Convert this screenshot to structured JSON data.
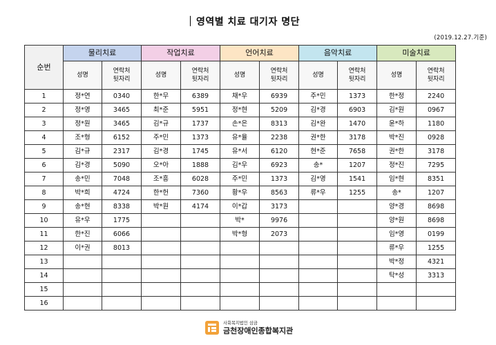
{
  "title": "영역별 치료 대기자 명단",
  "date_note": "(2019.12.27.기준)",
  "number_header": "순번",
  "colors": {
    "physical": "#c5d4ee",
    "occupational": "#f3cfe6",
    "speech": "#fde5c4",
    "music": "#c3e5ef",
    "art": "#d8e9be",
    "logo": "#f2a23a"
  },
  "groups": [
    {
      "key": "physical",
      "label": "물리치료",
      "name_header": "성명",
      "contact_header": [
        "연락처",
        "뒷자리"
      ]
    },
    {
      "key": "occupational",
      "label": "작업치료",
      "name_header": "성명",
      "contact_header": [
        "연락처",
        "뒷자리"
      ]
    },
    {
      "key": "speech",
      "label": "언어치료",
      "name_header": "성명",
      "contact_header": [
        "연락처",
        "뒷자리"
      ]
    },
    {
      "key": "music",
      "label": "음악치료",
      "name_header": "성명",
      "contact_header": [
        "연락처",
        "뒷자리"
      ]
    },
    {
      "key": "art",
      "label": "미술치료",
      "name_header": "성명",
      "contact_header": [
        "연락처",
        "뒷자리"
      ]
    }
  ],
  "rows": [
    {
      "no": "1",
      "cells": [
        [
          "정*연",
          "0340"
        ],
        [
          "한*무",
          "6389"
        ],
        [
          "채*우",
          "6939"
        ],
        [
          "주*민",
          "1373"
        ],
        [
          "한*정",
          "2240"
        ]
      ]
    },
    {
      "no": "2",
      "cells": [
        [
          "정*영",
          "3465"
        ],
        [
          "최*준",
          "5951"
        ],
        [
          "정*현",
          "5209"
        ],
        [
          "김*경",
          "6903"
        ],
        [
          "김*원",
          "0967"
        ]
      ]
    },
    {
      "no": "3",
      "cells": [
        [
          "정*원",
          "3465"
        ],
        [
          "김*규",
          "1737"
        ],
        [
          "손*은",
          "8313"
        ],
        [
          "김*완",
          "1470"
        ],
        [
          "윤*하",
          "1180"
        ]
      ]
    },
    {
      "no": "4",
      "cells": [
        [
          "조*형",
          "6152"
        ],
        [
          "주*민",
          "1373"
        ],
        [
          "유*율",
          "2238"
        ],
        [
          "권*한",
          "3178"
        ],
        [
          "박*진",
          "0928"
        ]
      ]
    },
    {
      "no": "5",
      "cells": [
        [
          "김*규",
          "2317"
        ],
        [
          "김*경",
          "1745"
        ],
        [
          "유*서",
          "6120"
        ],
        [
          "현*준",
          "7658"
        ],
        [
          "권*한",
          "3178"
        ]
      ]
    },
    {
      "no": "6",
      "cells": [
        [
          "김*경",
          "5090"
        ],
        [
          "오*아",
          "1888"
        ],
        [
          "김*우",
          "6923"
        ],
        [
          "송*",
          "1207"
        ],
        [
          "정*진",
          "7295"
        ]
      ]
    },
    {
      "no": "7",
      "cells": [
        [
          "송*민",
          "7048"
        ],
        [
          "조*흥",
          "6028"
        ],
        [
          "주*민",
          "1373"
        ],
        [
          "김*영",
          "1541"
        ],
        [
          "임*현",
          "8351"
        ]
      ]
    },
    {
      "no": "8",
      "cells": [
        [
          "박*희",
          "4724"
        ],
        [
          "한*헌",
          "7360"
        ],
        [
          "황*우",
          "8563"
        ],
        [
          "류*우",
          "1255"
        ],
        [
          "송*",
          "1207"
        ]
      ]
    },
    {
      "no": "9",
      "cells": [
        [
          "송*현",
          "8338"
        ],
        [
          "박*원",
          "4174"
        ],
        [
          "이*갑",
          "3173"
        ],
        [
          "",
          ""
        ],
        [
          "양*경",
          "8698"
        ]
      ]
    },
    {
      "no": "10",
      "cells": [
        [
          "유*우",
          "1775"
        ],
        [
          "",
          ""
        ],
        [
          "박*",
          "9976"
        ],
        [
          "",
          ""
        ],
        [
          "양*원",
          "8698"
        ]
      ]
    },
    {
      "no": "11",
      "cells": [
        [
          "한*진",
          "6066"
        ],
        [
          "",
          ""
        ],
        [
          "박*형",
          "2073"
        ],
        [
          "",
          ""
        ],
        [
          "임*영",
          "0199"
        ]
      ]
    },
    {
      "no": "12",
      "cells": [
        [
          "이*권",
          "8013"
        ],
        [
          "",
          ""
        ],
        [
          "",
          ""
        ],
        [
          "",
          ""
        ],
        [
          "류*우",
          "1255"
        ]
      ]
    },
    {
      "no": "13",
      "cells": [
        [
          "",
          ""
        ],
        [
          "",
          ""
        ],
        [
          "",
          ""
        ],
        [
          "",
          ""
        ],
        [
          "박*정",
          "4321"
        ]
      ]
    },
    {
      "no": "14",
      "cells": [
        [
          "",
          ""
        ],
        [
          "",
          ""
        ],
        [
          "",
          ""
        ],
        [
          "",
          ""
        ],
        [
          "탁*성",
          "3313"
        ]
      ]
    },
    {
      "no": "15",
      "cells": [
        [
          "",
          ""
        ],
        [
          "",
          ""
        ],
        [
          "",
          ""
        ],
        [
          "",
          ""
        ],
        [
          "",
          ""
        ]
      ]
    },
    {
      "no": "16",
      "cells": [
        [
          "",
          ""
        ],
        [
          "",
          ""
        ],
        [
          "",
          ""
        ],
        [
          "",
          ""
        ],
        [
          "",
          ""
        ]
      ]
    }
  ],
  "footer": {
    "small": "사회복지법인 삼금",
    "name": "금천장애인종합복지관",
    "logo_icon": "welfare-center-logo"
  }
}
